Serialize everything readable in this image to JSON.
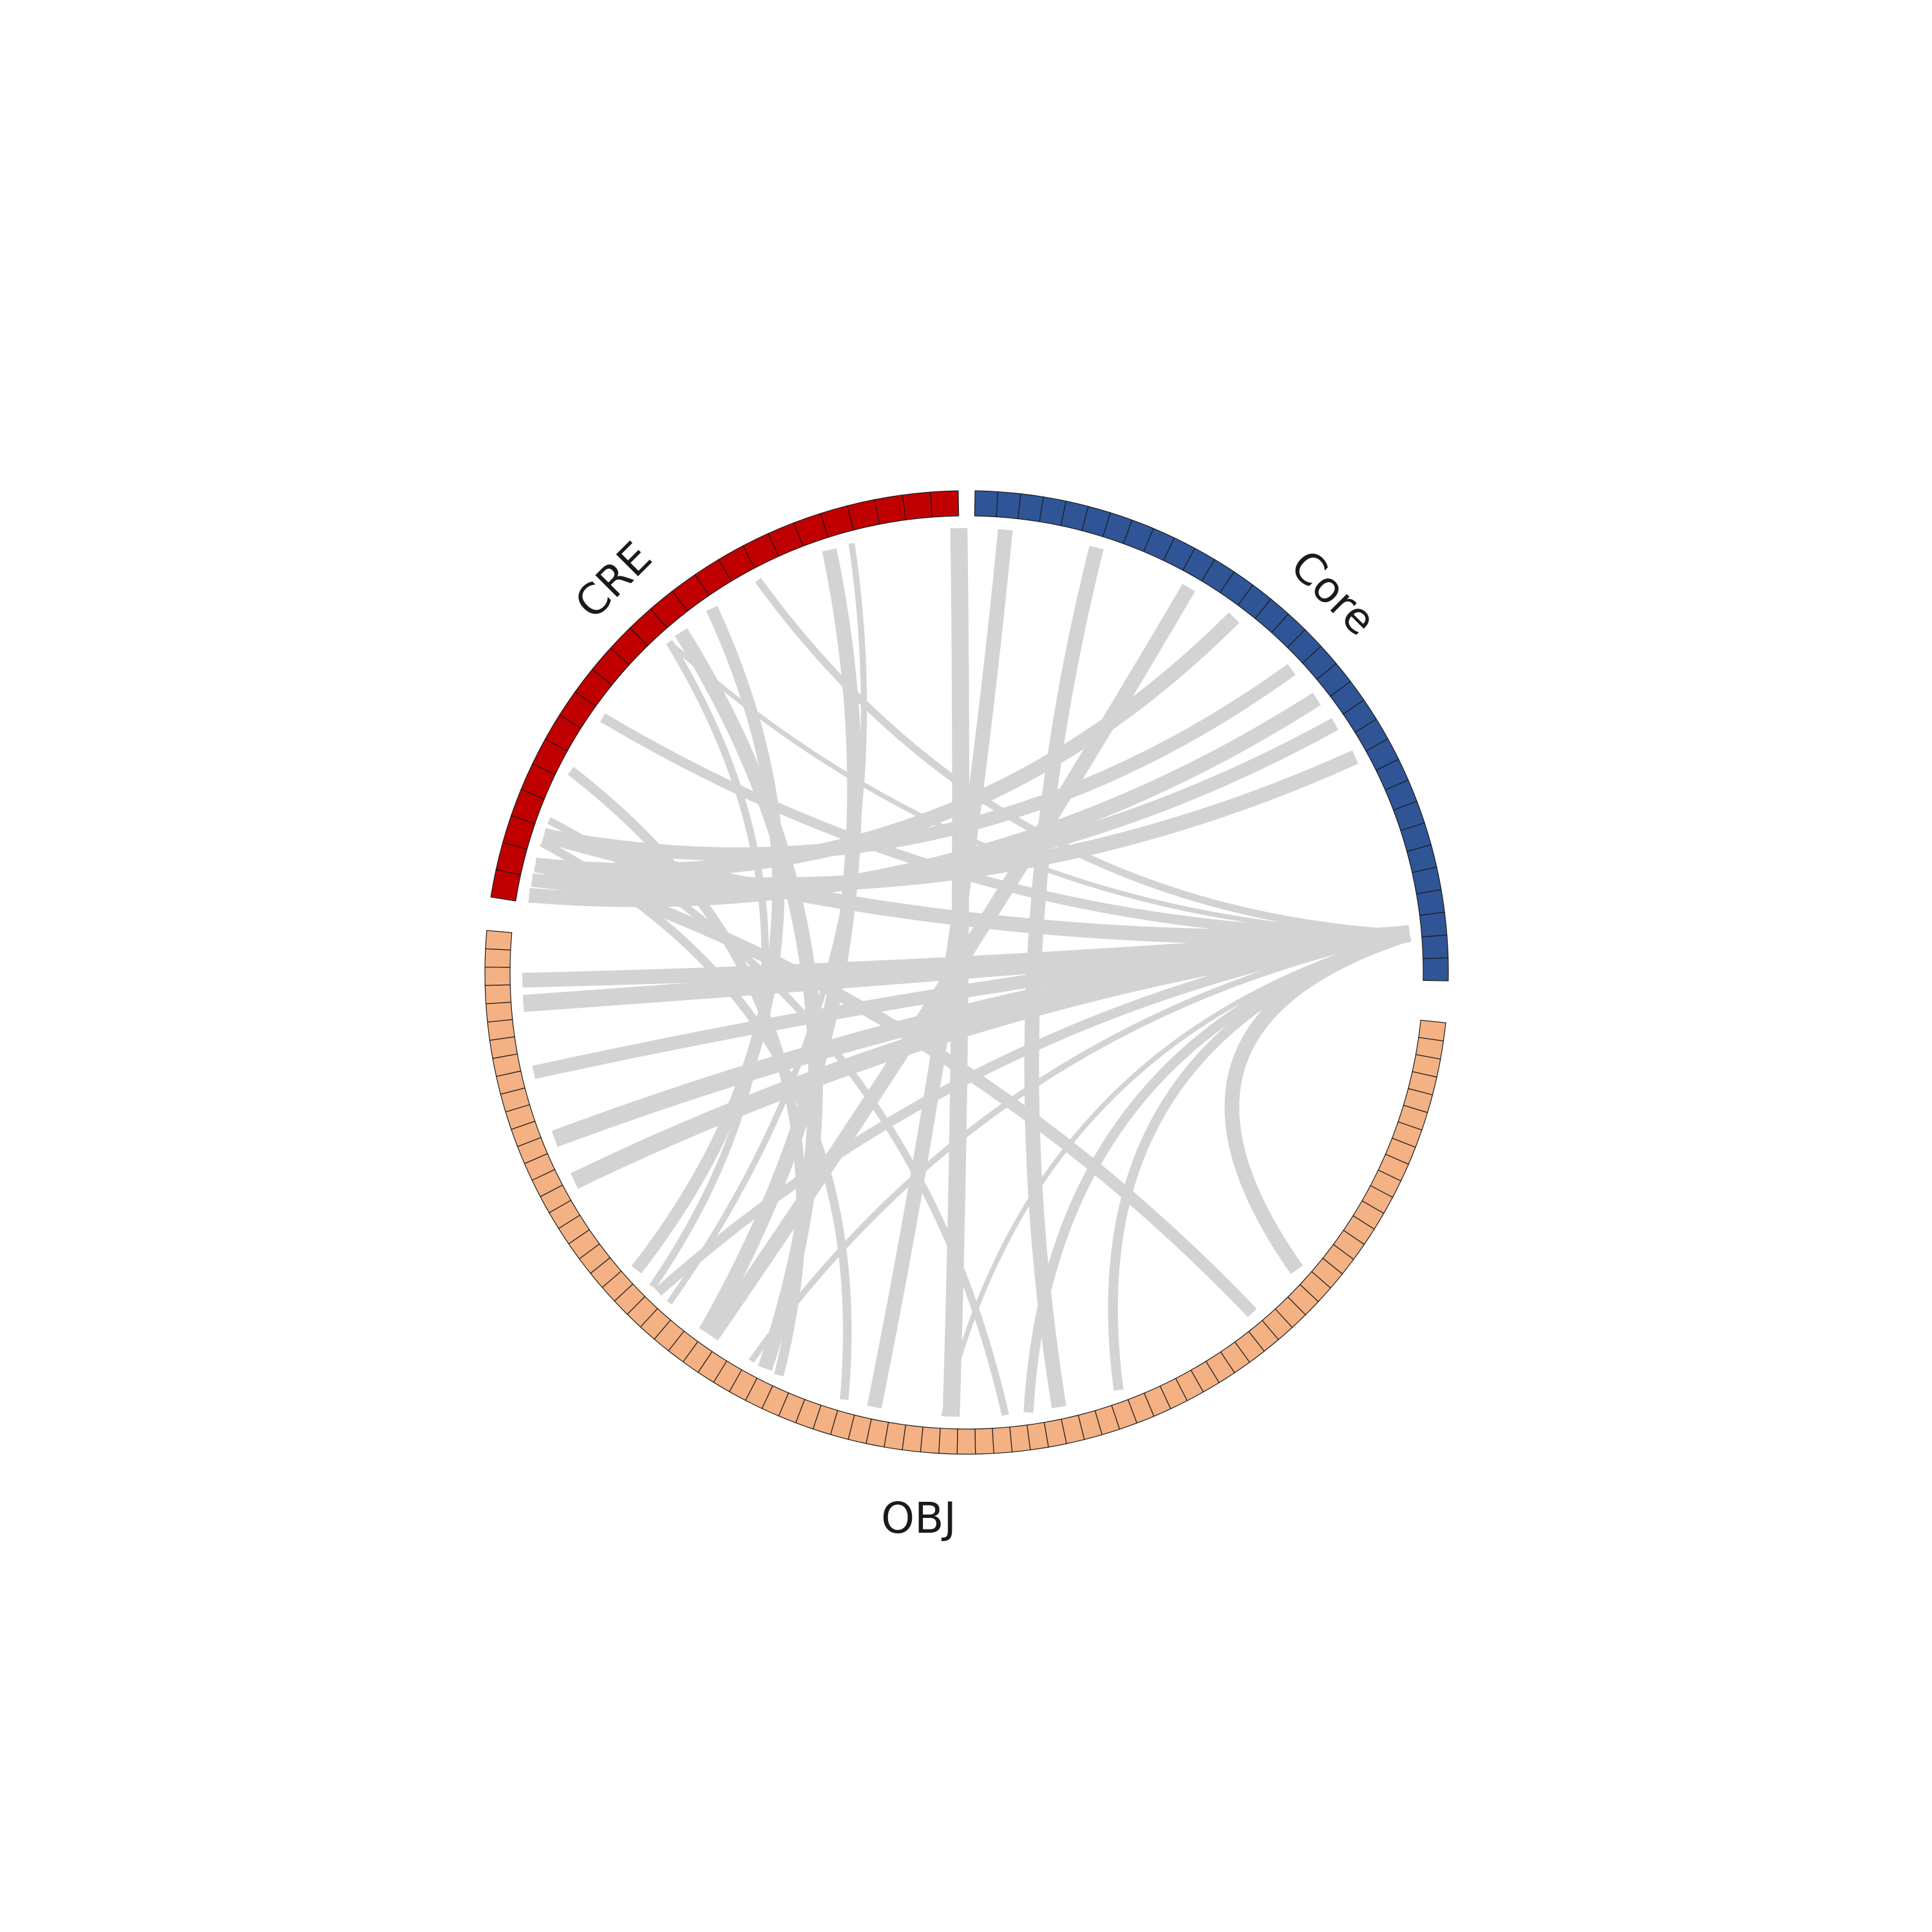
{
  "groups": [
    {
      "name": "CRE",
      "color": "#c00000",
      "count": 24,
      "start_deg": 279,
      "end_deg": 359
    },
    {
      "name": "Core",
      "color": "#2f5597",
      "count": 33,
      "start_deg": 1,
      "end_deg": 91
    },
    {
      "name": "OBJ",
      "color": "#f4b183",
      "count": 82,
      "start_deg": 96,
      "end_deg": 275
    }
  ],
  "links": [
    [
      359,
      182,
      14
    ],
    [
      5,
      192,
      12
    ],
    [
      17,
      168,
      12
    ],
    [
      30,
      215,
      12
    ],
    [
      342,
      216,
      12
    ],
    [
      325,
      228,
      10
    ],
    [
      320,
      207,
      12
    ],
    [
      37,
      284,
      12
    ],
    [
      47,
      288,
      11
    ],
    [
      52,
      280,
      12
    ],
    [
      56,
      282,
      11
    ],
    [
      61,
      284,
      12
    ],
    [
      85,
      288,
      12
    ],
    [
      85,
      266,
      14
    ],
    [
      85,
      269,
      12
    ],
    [
      85,
      257,
      11
    ],
    [
      85,
      248,
      14
    ],
    [
      85,
      242,
      14
    ],
    [
      85,
      224,
      8
    ],
    [
      85,
      209,
      5
    ],
    [
      85,
      183,
      4
    ],
    [
      85,
      172,
      8
    ],
    [
      85,
      160,
      8
    ],
    [
      85,
      305,
      8
    ],
    [
      85,
      318,
      4
    ],
    [
      85,
      332,
      6
    ],
    [
      85,
      132,
      12
    ],
    [
      287,
      196,
      7
    ],
    [
      290,
      175,
      6
    ],
    [
      284,
      140,
      10
    ],
    [
      297,
      205,
      8
    ],
    [
      318,
      225,
      6
    ],
    [
      345,
      222,
      5
    ]
  ]
}
